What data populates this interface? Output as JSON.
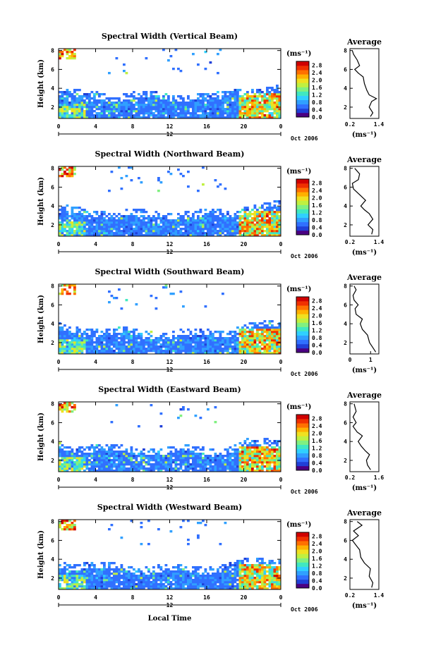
{
  "panel_titles": [
    "Spectral Width (Vertical Beam)",
    "Spectral Width (Northward Beam)",
    "Spectral Width (Southward Beam)",
    "Spectral Width (Eastward Beam)",
    "Spectral Width (Westward Beam)"
  ],
  "average_title": "Average",
  "date_label": "Oct 2006",
  "unit_label": "(ms⁻¹)",
  "x_axis_label": "Local Time",
  "y_axis_label": "Height (km)",
  "colors": {
    "colormap": [
      "#4b0082",
      "#2040d8",
      "#3070ff",
      "#30a0ff",
      "#30d0ff",
      "#40e8c0",
      "#80f080",
      "#c0f040",
      "#f0e020",
      "#ffb000",
      "#ff7000",
      "#f03000",
      "#d00000"
    ]
  },
  "chart_data": [
    {
      "type": "heatmap",
      "title": "Spectral Width (Vertical Beam)",
      "xlabel": "",
      "ylabel": "Height (km)",
      "x_ticks": [
        "0",
        "4",
        "8",
        "12",
        "16",
        "20",
        "0"
      ],
      "x_subticks": [
        "12"
      ],
      "xlim": [
        0,
        24
      ],
      "y_ticks": [
        "2",
        "4",
        "6",
        "8"
      ],
      "ylim": [
        0.8,
        8.2
      ],
      "colorbar": {
        "ticks": [
          "0.0",
          "0.4",
          "0.8",
          "1.2",
          "1.6",
          "2.0",
          "2.4",
          "2.8"
        ],
        "range": [
          0,
          3.0
        ]
      },
      "profile": {
        "title": "Average",
        "x_ticks": [
          "0.2",
          "1.4"
        ],
        "y_ticks": [
          "2",
          "4",
          "6",
          "8"
        ],
        "xlim": [
          0.2,
          1.4
        ],
        "xlabel": "(ms⁻¹)",
        "points": [
          [
            1.05,
            1.0
          ],
          [
            1.15,
            1.4
          ],
          [
            1.0,
            2.0
          ],
          [
            1.1,
            2.6
          ],
          [
            1.3,
            2.9
          ],
          [
            1.0,
            3.3
          ],
          [
            0.9,
            3.8
          ],
          [
            0.8,
            4.5
          ],
          [
            0.75,
            5.2
          ],
          [
            0.55,
            5.6
          ],
          [
            0.4,
            6.0
          ],
          [
            0.6,
            6.4
          ],
          [
            0.5,
            7.0
          ],
          [
            0.35,
            7.6
          ],
          [
            0.3,
            8.0
          ]
        ]
      }
    },
    {
      "type": "heatmap",
      "title": "Spectral Width (Northward Beam)",
      "xlabel": "",
      "ylabel": "Height (km)",
      "x_ticks": [
        "0",
        "4",
        "8",
        "12",
        "16",
        "20",
        "0"
      ],
      "x_subticks": [
        "12"
      ],
      "xlim": [
        0,
        24
      ],
      "y_ticks": [
        "2",
        "4",
        "6",
        "8"
      ],
      "ylim": [
        0.8,
        8.2
      ],
      "colorbar": {
        "ticks": [
          "0.0",
          "0.4",
          "0.8",
          "1.2",
          "1.6",
          "2.0",
          "2.4",
          "2.8"
        ],
        "range": [
          0,
          3.0
        ]
      },
      "profile": {
        "title": "Average",
        "x_ticks": [
          "0.2",
          "1.4"
        ],
        "y_ticks": [
          "2",
          "4",
          "6",
          "8"
        ],
        "xlim": [
          0.2,
          1.4
        ],
        "xlabel": "(ms⁻¹)",
        "points": [
          [
            1.1,
            1.0
          ],
          [
            1.15,
            1.5
          ],
          [
            0.95,
            2.0
          ],
          [
            1.15,
            2.6
          ],
          [
            1.0,
            3.2
          ],
          [
            0.8,
            3.6
          ],
          [
            0.65,
            4.0
          ],
          [
            0.85,
            4.6
          ],
          [
            0.6,
            5.2
          ],
          [
            0.35,
            5.8
          ],
          [
            0.3,
            6.4
          ],
          [
            0.55,
            6.8
          ],
          [
            0.6,
            7.4
          ],
          [
            0.4,
            8.0
          ]
        ]
      }
    },
    {
      "type": "heatmap",
      "title": "Spectral Width (Southward Beam)",
      "xlabel": "",
      "ylabel": "Height (km)",
      "x_ticks": [
        "0",
        "4",
        "8",
        "12",
        "16",
        "20",
        "0"
      ],
      "x_subticks": [
        "12"
      ],
      "xlim": [
        0,
        24
      ],
      "y_ticks": [
        "2",
        "4",
        "6",
        "8"
      ],
      "ylim": [
        0.8,
        8.2
      ],
      "colorbar": {
        "ticks": [
          "0.0",
          "0.4",
          "0.8",
          "1.2",
          "1.6",
          "2.0",
          "2.4",
          "2.8"
        ],
        "range": [
          0,
          3.0
        ]
      },
      "profile": {
        "title": "Average",
        "x_ticks": [
          "0",
          "1"
        ],
        "y_ticks": [
          "2",
          "4",
          "6",
          "8"
        ],
        "xlim": [
          0,
          1.4
        ],
        "xlabel": "(ms⁻¹)",
        "points": [
          [
            1.25,
            1.0
          ],
          [
            1.1,
            1.5
          ],
          [
            0.95,
            2.0
          ],
          [
            0.85,
            2.8
          ],
          [
            0.6,
            3.4
          ],
          [
            0.5,
            4.0
          ],
          [
            0.6,
            4.5
          ],
          [
            0.3,
            5.0
          ],
          [
            0.25,
            5.6
          ],
          [
            0.4,
            6.0
          ],
          [
            0.2,
            6.5
          ],
          [
            0.15,
            7.0
          ],
          [
            0.3,
            7.6
          ],
          [
            0.2,
            8.0
          ]
        ]
      }
    },
    {
      "type": "heatmap",
      "title": "Spectral Width (Eastward Beam)",
      "xlabel": "",
      "ylabel": "Height (km)",
      "x_ticks": [
        "0",
        "4",
        "8",
        "12",
        "16",
        "20",
        "0"
      ],
      "x_subticks": [
        "12"
      ],
      "xlim": [
        0,
        24
      ],
      "y_ticks": [
        "2",
        "4",
        "6",
        "8"
      ],
      "ylim": [
        0.8,
        8.2
      ],
      "colorbar": {
        "ticks": [
          "0.0",
          "0.4",
          "0.8",
          "1.2",
          "1.6",
          "2.0",
          "2.4",
          "2.8"
        ],
        "range": [
          0,
          3.0
        ]
      },
      "profile": {
        "title": "Average",
        "x_ticks": [
          "0.2",
          "1.6"
        ],
        "y_ticks": [
          "2",
          "4",
          "6",
          "8"
        ],
        "xlim": [
          0.2,
          1.6
        ],
        "xlabel": "(ms⁻¹)",
        "points": [
          [
            1.2,
            1.0
          ],
          [
            1.05,
            1.5
          ],
          [
            1.0,
            2.0
          ],
          [
            1.15,
            2.6
          ],
          [
            0.95,
            3.0
          ],
          [
            0.75,
            3.5
          ],
          [
            0.6,
            4.0
          ],
          [
            0.8,
            4.6
          ],
          [
            0.55,
            5.0
          ],
          [
            0.35,
            5.6
          ],
          [
            0.5,
            6.0
          ],
          [
            0.35,
            6.6
          ],
          [
            0.5,
            7.2
          ],
          [
            0.4,
            8.0
          ]
        ]
      }
    },
    {
      "type": "heatmap",
      "title": "Spectral Width (Westward Beam)",
      "xlabel": "Local Time",
      "ylabel": "Height (km)",
      "x_ticks": [
        "0",
        "4",
        "8",
        "12",
        "16",
        "20",
        "0"
      ],
      "x_subticks": [
        "12"
      ],
      "xlim": [
        0,
        24
      ],
      "y_ticks": [
        "2",
        "4",
        "6",
        "8"
      ],
      "ylim": [
        0.8,
        8.2
      ],
      "colorbar": {
        "ticks": [
          "0.0",
          "0.4",
          "0.8",
          "1.2",
          "1.6",
          "2.0",
          "2.4",
          "2.8"
        ],
        "range": [
          0,
          3.0
        ]
      },
      "profile": {
        "title": "Average",
        "x_ticks": [
          "0.2",
          "1.4"
        ],
        "y_ticks": [
          "2",
          "4",
          "6",
          "8"
        ],
        "xlim": [
          0.2,
          1.4
        ],
        "xlabel": "(ms⁻¹)",
        "points": [
          [
            1.1,
            1.0
          ],
          [
            1.15,
            1.5
          ],
          [
            1.0,
            2.2
          ],
          [
            1.05,
            3.0
          ],
          [
            0.8,
            3.6
          ],
          [
            0.65,
            4.2
          ],
          [
            0.6,
            5.0
          ],
          [
            0.45,
            5.5
          ],
          [
            0.3,
            6.0
          ],
          [
            0.55,
            6.5
          ],
          [
            0.35,
            7.0
          ],
          [
            0.7,
            7.6
          ],
          [
            0.5,
            8.0
          ]
        ]
      }
    }
  ]
}
